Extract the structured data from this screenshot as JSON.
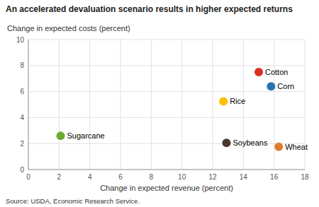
{
  "chart_data": {
    "type": "scatter",
    "title": "An accelerated devaluation scenario results in higher expected returns",
    "xlabel": "Change in expected revenue (percent)",
    "ylabel": "Change in expected costs (percent)",
    "source": "Source: USDA, Economic Research Service.",
    "xlim": [
      0,
      18
    ],
    "ylim": [
      0,
      10
    ],
    "xticks": [
      0,
      2,
      4,
      6,
      8,
      10,
      12,
      14,
      16,
      18
    ],
    "yticks": [
      0,
      2,
      4,
      6,
      8,
      10
    ],
    "grid": true,
    "series": [
      {
        "name": "Cotton",
        "color": "#d93025",
        "x": [
          15.0
        ],
        "values": [
          7.5
        ]
      },
      {
        "name": "Corn",
        "color": "#2574b0",
        "x": [
          15.8
        ],
        "values": [
          6.4
        ]
      },
      {
        "name": "Rice",
        "color": "#ffc000",
        "x": [
          12.7
        ],
        "values": [
          5.25
        ]
      },
      {
        "name": "Sugarcane",
        "color": "#6aaa35",
        "x": [
          2.1
        ],
        "values": [
          2.6
        ]
      },
      {
        "name": "Soybeans",
        "color": "#4b3832",
        "x": [
          12.9
        ],
        "values": [
          2.05
        ]
      },
      {
        "name": "Wheat",
        "color": "#e07a30",
        "x": [
          16.3
        ],
        "values": [
          1.75
        ]
      }
    ]
  }
}
